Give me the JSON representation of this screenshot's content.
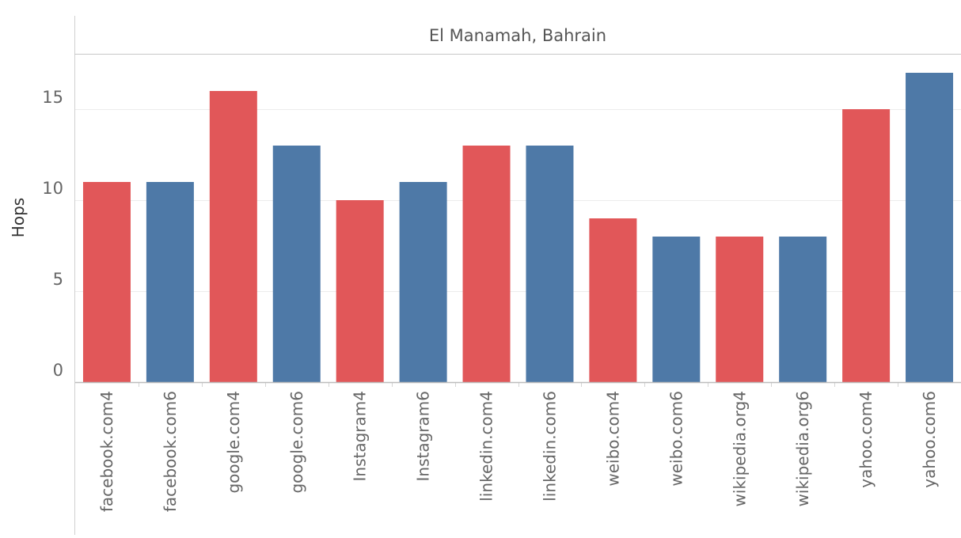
{
  "chart_data": {
    "type": "bar",
    "title": "El Manamah, Bahrain",
    "xlabel": "",
    "ylabel": "Hops",
    "ylim": [
      0,
      18
    ],
    "yticks": [
      0,
      5,
      10,
      15
    ],
    "grid": true,
    "legend": "none",
    "categories": [
      "facebook.com4",
      "facebook.com6",
      "google.com4",
      "google.com6",
      "Instagram4",
      "Instagram6",
      "linkedin.com4",
      "linkedin.com6",
      "weibo.com4",
      "weibo.com6",
      "wikipedia.org4",
      "wikipedia.org6",
      "yahoo.com4",
      "yahoo.com6"
    ],
    "values": [
      11,
      11,
      16,
      13,
      10,
      11,
      13,
      13,
      9,
      8,
      8,
      8,
      15,
      17
    ],
    "bar_colors": [
      "#e15759",
      "#4e79a7",
      "#e15759",
      "#4e79a7",
      "#e15759",
      "#4e79a7",
      "#e15759",
      "#4e79a7",
      "#e15759",
      "#4e79a7",
      "#e15759",
      "#4e79a7",
      "#e15759",
      "#4e79a7"
    ]
  }
}
